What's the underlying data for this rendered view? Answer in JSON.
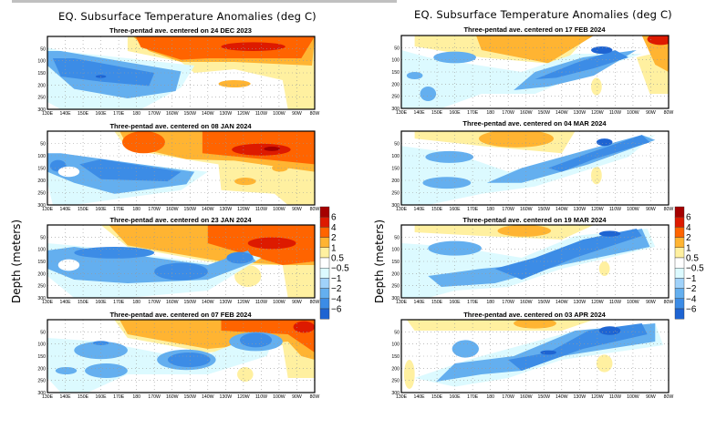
{
  "chart_data": {
    "type": "heatmap",
    "main_titles": [
      "EQ. Subsurface Temperature Anomalies (deg C)",
      "EQ. Subsurface Temperature Anomalies (deg C)"
    ],
    "ylabel": "Depth (meters)",
    "xlabel": "",
    "x_tick_labels": [
      "130E",
      "140E",
      "150E",
      "160E",
      "170E",
      "180",
      "170W",
      "160W",
      "150W",
      "140W",
      "130W",
      "120W",
      "110W",
      "100W",
      "90W",
      "80W"
    ],
    "y_tick_labels": [
      "50",
      "100",
      "150",
      "200",
      "250",
      "300"
    ],
    "ylim": [
      300,
      0
    ],
    "xlim": [
      "130E",
      "80W"
    ],
    "grid": true,
    "colorbar": {
      "placement": "right",
      "levels": [
        "6",
        "4",
        "2",
        "1",
        "0.5",
        "-0.5",
        "-1",
        "-2",
        "-4",
        "-6"
      ],
      "colors": [
        "#a50000",
        "#dd1a00",
        "#ff6400",
        "#ffb432",
        "#fff0a0",
        "#ffffff",
        "#dcfaff",
        "#a0d2fa",
        "#64afef",
        "#3c8ce6",
        "#1e64d2"
      ]
    },
    "panels": [
      {
        "title": "Three-pentad ave. centered on 24 DEC 2023",
        "pattern": "warm-east-strong-cold-west-deep"
      },
      {
        "title": "Three-pentad ave. centered on 08 JAN 2024",
        "pattern": "warm-east-strong-cold-west"
      },
      {
        "title": "Three-pentad ave. centered on 23 JAN 2024",
        "pattern": "warm-surface-cold-thermocline"
      },
      {
        "title": "Three-pentad ave. centered on 07 FEB 2024",
        "pattern": "warm-surface-cold-spreading-east"
      },
      {
        "title": "Three-pentad ave. centered on 17 FEB 2024",
        "pattern": "cold-tongue-rising-east"
      },
      {
        "title": "Three-pentad ave. centered on 04 MAR 2024",
        "pattern": "cold-tongue-strong-east"
      },
      {
        "title": "Three-pentad ave. centered on 19 MAR 2024",
        "pattern": "cold-tongue-dominant"
      },
      {
        "title": "Three-pentad ave. centered on 03 APR 2024",
        "pattern": "cold-tongue-dominant-deep"
      }
    ]
  }
}
